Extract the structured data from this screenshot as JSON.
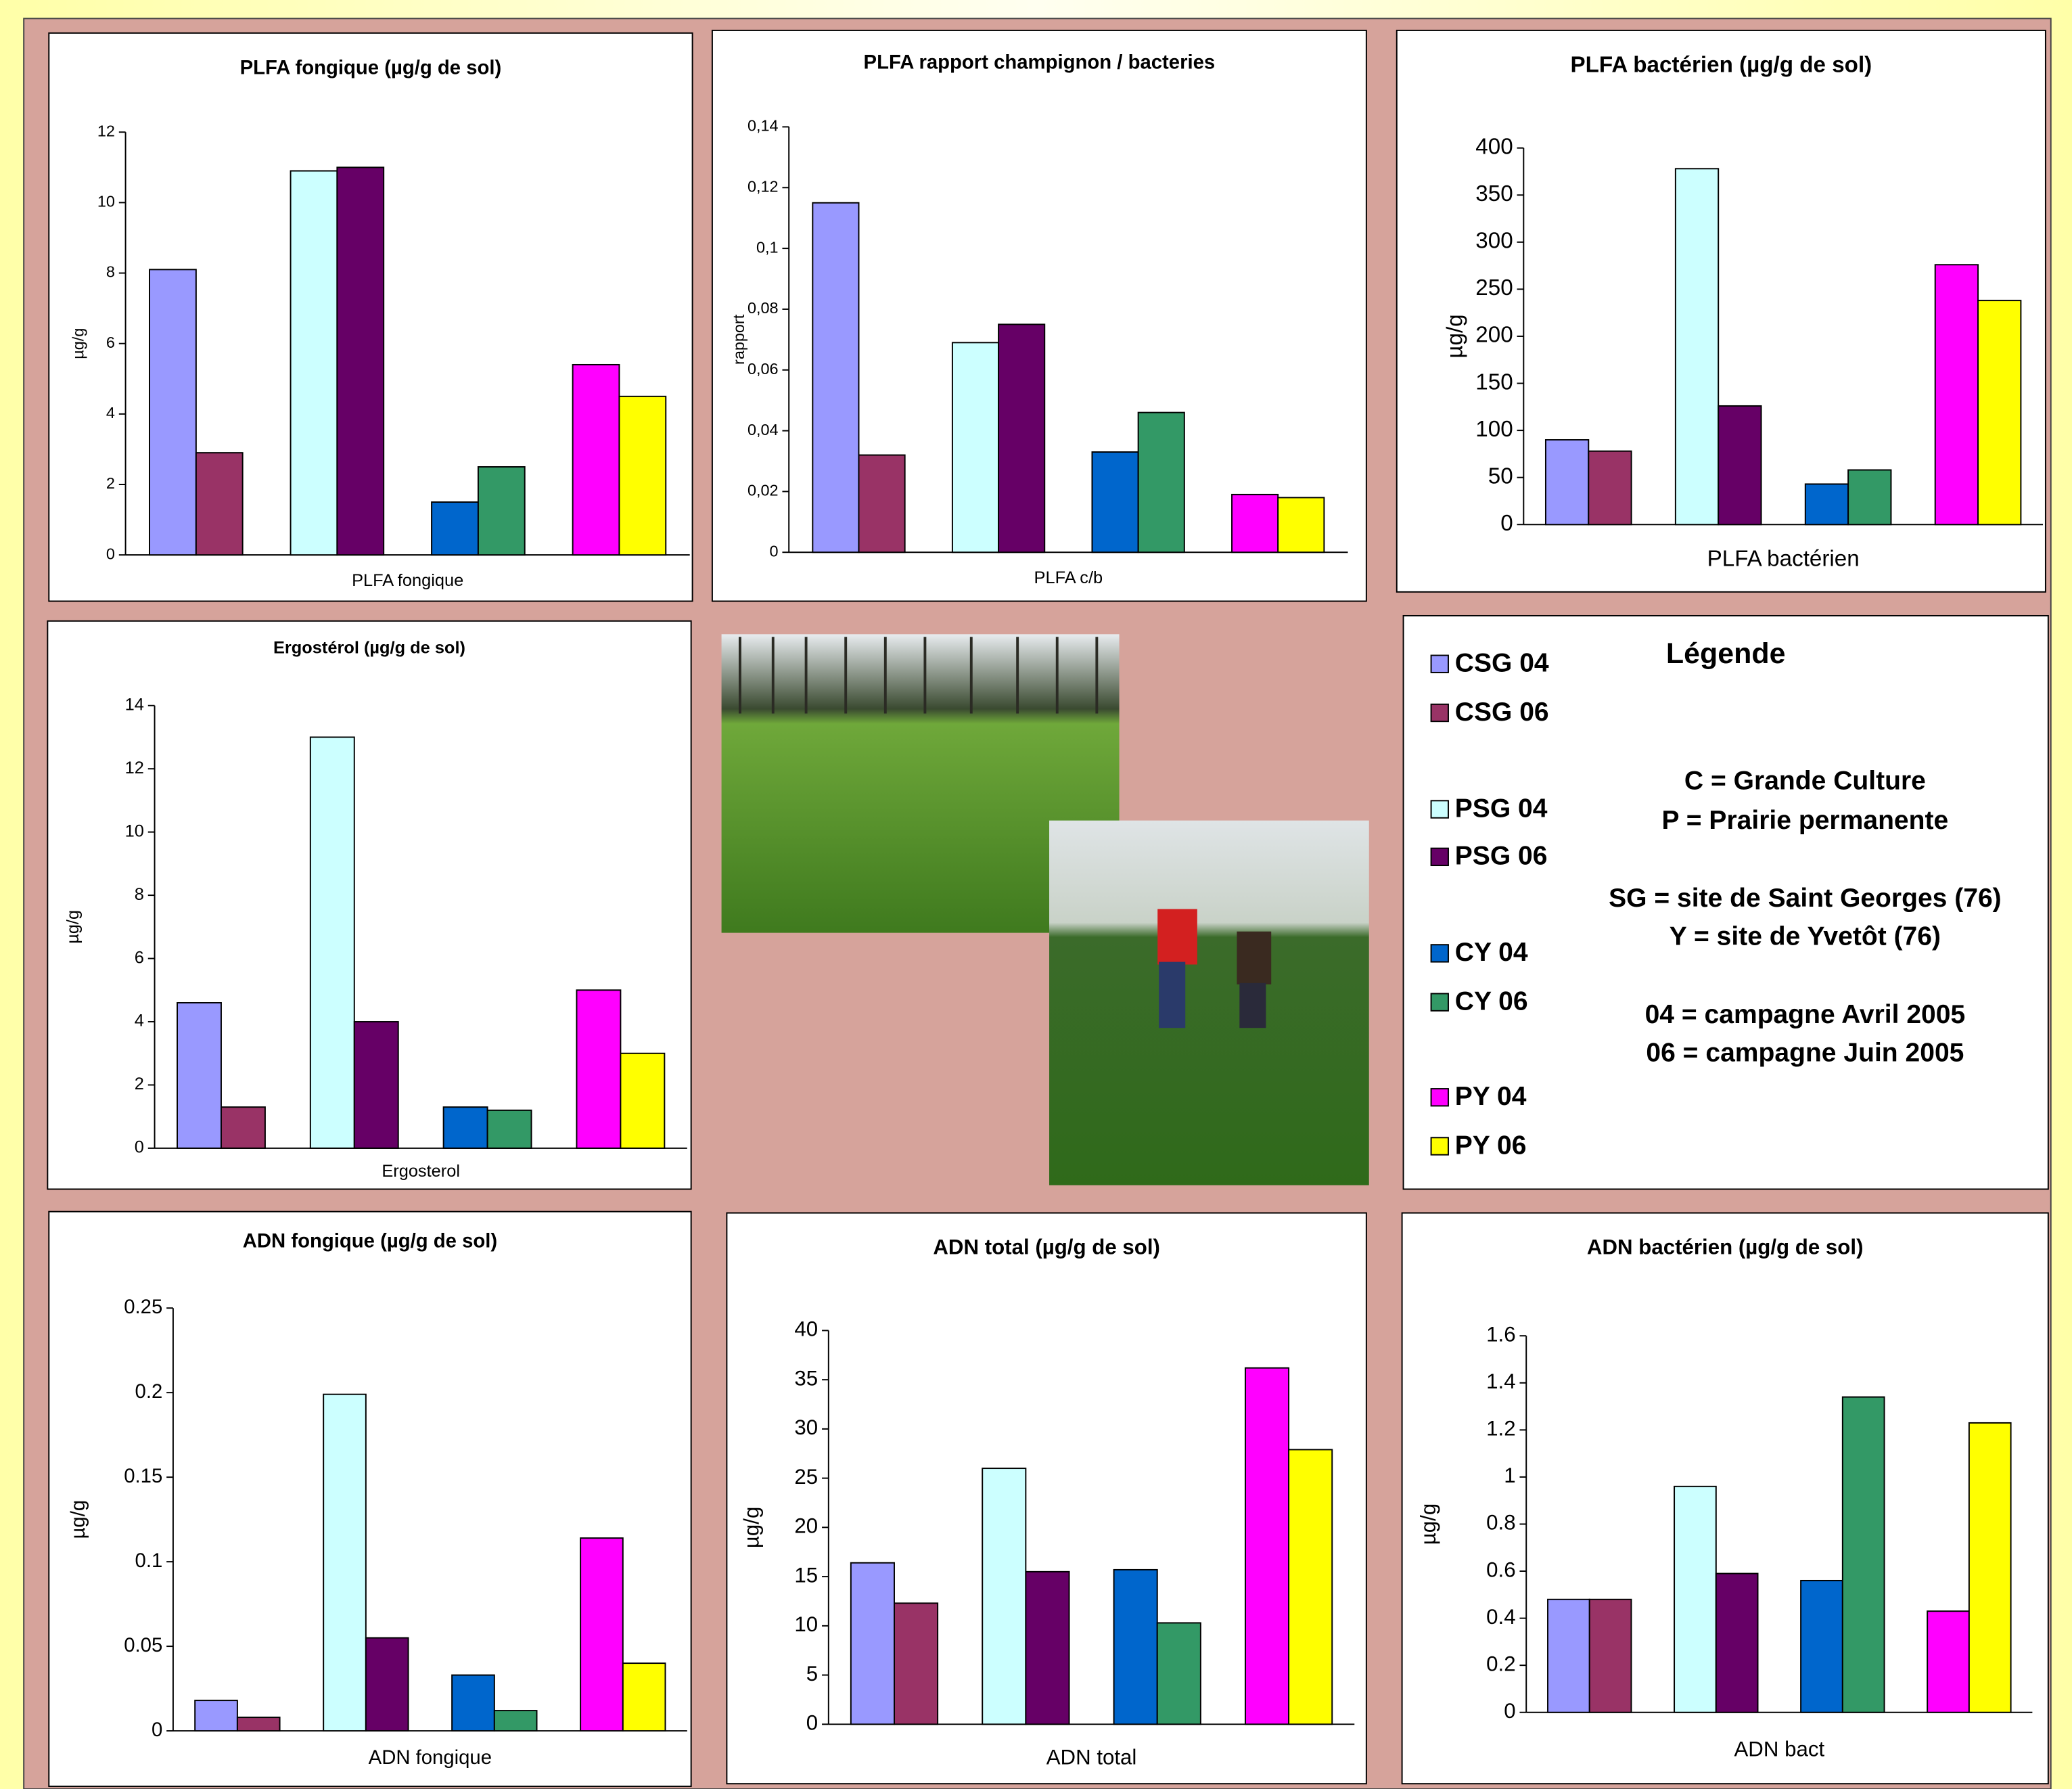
{
  "chart_data": [
    {
      "type": "bar",
      "title": "PLFA fongique (µg/g de sol)",
      "y_label": "µg/g",
      "categories": [
        "PLFA fongique"
      ],
      "ylim": [
        0,
        12
      ],
      "yticks": [
        0,
        2,
        4,
        6,
        8,
        10,
        12
      ],
      "series": [
        {
          "name": "CSG 04",
          "color": "#9999ff",
          "values": [
            8.1
          ]
        },
        {
          "name": "CSG 06",
          "color": "#993366",
          "values": [
            2.9
          ]
        },
        {
          "name": "PSG 04",
          "color": "#ccffff",
          "values": [
            10.9
          ]
        },
        {
          "name": "PSG 06",
          "color": "#660066",
          "values": [
            11.0
          ]
        },
        {
          "name": "CY 04",
          "color": "#0066cc",
          "values": [
            1.5
          ]
        },
        {
          "name": "CY 06",
          "color": "#339966",
          "values": [
            2.5
          ]
        },
        {
          "name": "PY 04",
          "color": "#ff00ff",
          "values": [
            5.4
          ]
        },
        {
          "name": "PY 06",
          "color": "#ffff00",
          "values": [
            4.5
          ]
        }
      ]
    },
    {
      "type": "bar",
      "title": "PLFA rapport champignon / bacteries",
      "y_label": "rapport",
      "categories": [
        "PLFA c/b"
      ],
      "ylim": [
        0,
        0.14
      ],
      "yticks": [
        0,
        {
          "value": 0.02,
          "label": "0,02"
        },
        {
          "value": 0.04,
          "label": "0,04"
        },
        {
          "value": 0.06,
          "label": "0,06"
        },
        {
          "value": 0.08,
          "label": "0,08"
        },
        {
          "value": 0.1,
          "label": "0,1"
        },
        {
          "value": 0.12,
          "label": "0,12"
        },
        {
          "value": 0.14,
          "label": "0,14"
        }
      ],
      "series": [
        {
          "name": "CSG 04",
          "color": "#9999ff",
          "values": [
            0.115
          ]
        },
        {
          "name": "CSG 06",
          "color": "#993366",
          "values": [
            0.032
          ]
        },
        {
          "name": "PSG 04",
          "color": "#ccffff",
          "values": [
            0.069
          ]
        },
        {
          "name": "PSG 06",
          "color": "#660066",
          "values": [
            0.075
          ]
        },
        {
          "name": "CY 04",
          "color": "#0066cc",
          "values": [
            0.033
          ]
        },
        {
          "name": "CY 06",
          "color": "#339966",
          "values": [
            0.046
          ]
        },
        {
          "name": "PY 04",
          "color": "#ff00ff",
          "values": [
            0.019
          ]
        },
        {
          "name": "PY 06",
          "color": "#ffff00",
          "values": [
            0.018
          ]
        }
      ]
    },
    {
      "type": "bar",
      "title": "PLFA bactérien (µg/g de sol)",
      "y_label": "µg/g",
      "categories": [
        "PLFA bactérien"
      ],
      "ylim": [
        0,
        400
      ],
      "yticks": [
        0,
        50,
        100,
        150,
        200,
        250,
        300,
        350,
        400
      ],
      "series": [
        {
          "name": "CSG 04",
          "color": "#9999ff",
          "values": [
            90
          ]
        },
        {
          "name": "CSG 06",
          "color": "#993366",
          "values": [
            78
          ]
        },
        {
          "name": "PSG 04",
          "color": "#ccffff",
          "values": [
            378
          ]
        },
        {
          "name": "PSG 06",
          "color": "#660066",
          "values": [
            126
          ]
        },
        {
          "name": "CY 04",
          "color": "#0066cc",
          "values": [
            43
          ]
        },
        {
          "name": "CY 06",
          "color": "#339966",
          "values": [
            58
          ]
        },
        {
          "name": "PY 04",
          "color": "#ff00ff",
          "values": [
            276
          ]
        },
        {
          "name": "PY 06",
          "color": "#ffff00",
          "values": [
            238
          ]
        }
      ]
    },
    {
      "type": "bar",
      "title": "Ergostérol (µg/g de sol)",
      "y_label": "µg/g",
      "categories": [
        "Ergosterol"
      ],
      "ylim": [
        0,
        14
      ],
      "yticks": [
        0,
        2,
        4,
        6,
        8,
        10,
        12,
        14
      ],
      "series": [
        {
          "name": "CSG 04",
          "color": "#9999ff",
          "values": [
            4.6
          ]
        },
        {
          "name": "CSG 06",
          "color": "#993366",
          "values": [
            1.3
          ]
        },
        {
          "name": "PSG 04",
          "color": "#ccffff",
          "values": [
            13.0
          ]
        },
        {
          "name": "PSG 06",
          "color": "#660066",
          "values": [
            4.0
          ]
        },
        {
          "name": "CY 04",
          "color": "#0066cc",
          "values": [
            1.3
          ]
        },
        {
          "name": "CY 06",
          "color": "#339966",
          "values": [
            1.2
          ]
        },
        {
          "name": "PY 04",
          "color": "#ff00ff",
          "values": [
            5.0
          ]
        },
        {
          "name": "PY 06",
          "color": "#ffff00",
          "values": [
            3.0
          ]
        }
      ]
    },
    {
      "type": "bar",
      "title": "ADN fongique (µg/g de sol)",
      "y_label": "µg/g",
      "categories": [
        "ADN fongique"
      ],
      "ylim": [
        0,
        0.25
      ],
      "yticks": [
        0,
        0.05,
        0.1,
        0.15,
        0.2,
        0.25
      ],
      "series": [
        {
          "name": "CSG 04",
          "color": "#9999ff",
          "values": [
            0.018
          ]
        },
        {
          "name": "CSG 06",
          "color": "#993366",
          "values": [
            0.008
          ]
        },
        {
          "name": "PSG 04",
          "color": "#ccffff",
          "values": [
            0.199
          ]
        },
        {
          "name": "PSG 06",
          "color": "#660066",
          "values": [
            0.055
          ]
        },
        {
          "name": "CY 04",
          "color": "#0066cc",
          "values": [
            0.033
          ]
        },
        {
          "name": "CY 06",
          "color": "#339966",
          "values": [
            0.012
          ]
        },
        {
          "name": "PY 04",
          "color": "#ff00ff",
          "values": [
            0.114
          ]
        },
        {
          "name": "PY 06",
          "color": "#ffff00",
          "values": [
            0.04
          ]
        }
      ]
    },
    {
      "type": "bar",
      "title": "ADN total (µg/g de sol)",
      "y_label": "µg/g",
      "categories": [
        "ADN total"
      ],
      "ylim": [
        0,
        40
      ],
      "yticks": [
        0,
        5,
        10,
        15,
        20,
        25,
        30,
        35,
        40
      ],
      "series": [
        {
          "name": "CSG 04",
          "color": "#9999ff",
          "values": [
            16.4
          ]
        },
        {
          "name": "CSG 06",
          "color": "#993366",
          "values": [
            12.3
          ]
        },
        {
          "name": "PSG 04",
          "color": "#ccffff",
          "values": [
            26.0
          ]
        },
        {
          "name": "PSG 06",
          "color": "#660066",
          "values": [
            15.5
          ]
        },
        {
          "name": "CY 04",
          "color": "#0066cc",
          "values": [
            15.7
          ]
        },
        {
          "name": "CY 06",
          "color": "#339966",
          "values": [
            10.3
          ]
        },
        {
          "name": "PY 04",
          "color": "#ff00ff",
          "values": [
            36.2
          ]
        },
        {
          "name": "PY 06",
          "color": "#ffff00",
          "values": [
            27.9
          ]
        }
      ]
    },
    {
      "type": "bar",
      "title": "ADN bactérien (µg/g de sol)",
      "y_label": "µg/g",
      "categories": [
        "ADN bact"
      ],
      "ylim": [
        0,
        1.6
      ],
      "yticks": [
        0,
        0.2,
        0.4,
        0.6,
        0.8,
        1,
        1.2,
        1.4,
        1.6
      ],
      "series": [
        {
          "name": "CSG 04",
          "color": "#9999ff",
          "values": [
            0.48
          ]
        },
        {
          "name": "CSG 06",
          "color": "#993366",
          "values": [
            0.48
          ]
        },
        {
          "name": "PSG 04",
          "color": "#ccffff",
          "values": [
            0.96
          ]
        },
        {
          "name": "PSG 06",
          "color": "#660066",
          "values": [
            0.59
          ]
        },
        {
          "name": "CY 04",
          "color": "#0066cc",
          "values": [
            0.56
          ]
        },
        {
          "name": "CY 06",
          "color": "#339966",
          "values": [
            1.34
          ]
        },
        {
          "name": "PY 04",
          "color": "#ff00ff",
          "values": [
            0.43
          ]
        },
        {
          "name": "PY 06",
          "color": "#ffff00",
          "values": [
            1.23
          ]
        }
      ]
    }
  ],
  "legend": {
    "title": "Légende",
    "notes": [
      "C = Grande Culture",
      "P = Prairie permanente",
      "SG = site de Saint Georges (76)",
      "Y = site de Yvetôt (76)",
      "04 = campagne Avril 2005",
      "06 = campagne Juin 2005"
    ]
  }
}
